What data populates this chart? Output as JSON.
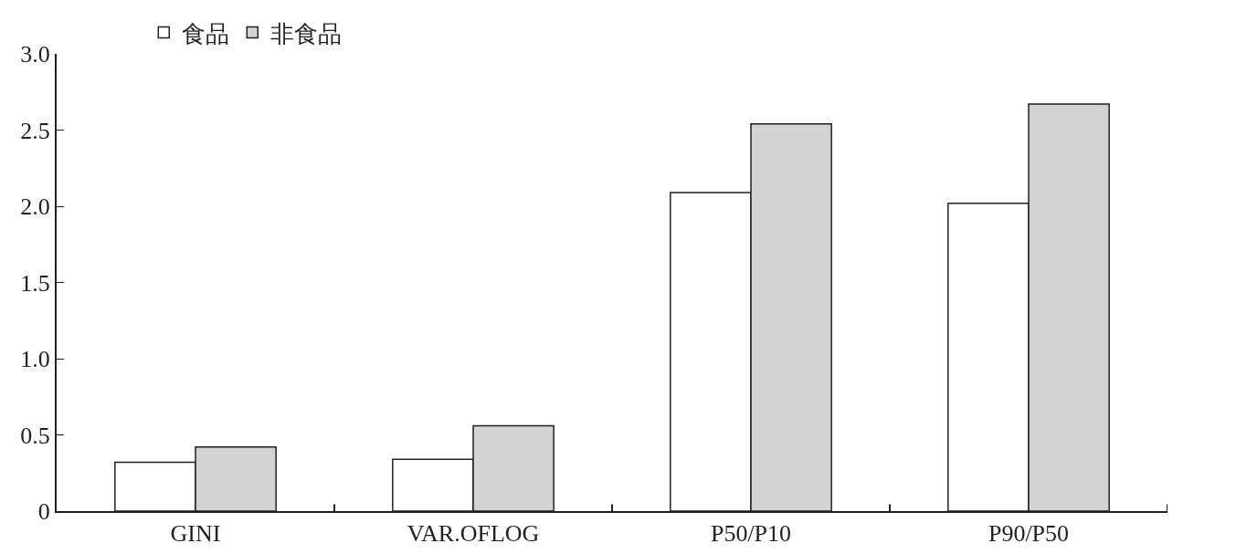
{
  "chart_data": {
    "type": "bar",
    "categories": [
      "GINI",
      "VAR.OFLOG",
      "P50/P10",
      "P90/P50"
    ],
    "series": [
      {
        "name": "食品",
        "color": "#ffffff",
        "values": [
          0.32,
          0.34,
          2.09,
          2.02
        ]
      },
      {
        "name": "非食品",
        "color": "#d1d3d4",
        "values": [
          0.42,
          0.56,
          2.54,
          2.67
        ]
      }
    ],
    "ylim": [
      0,
      3
    ],
    "yticks": [
      0,
      {
        "value": 0.5,
        "label": "0.5"
      },
      {
        "value": 1,
        "label": "1.0"
      },
      {
        "value": 1.5,
        "label": "1.5"
      },
      {
        "value": 2,
        "label": "2.0"
      },
      {
        "value": 2.5,
        "label": "2.5"
      },
      {
        "value": 3,
        "label": "3.0"
      }
    ],
    "grid": false,
    "legend": "top left"
  }
}
